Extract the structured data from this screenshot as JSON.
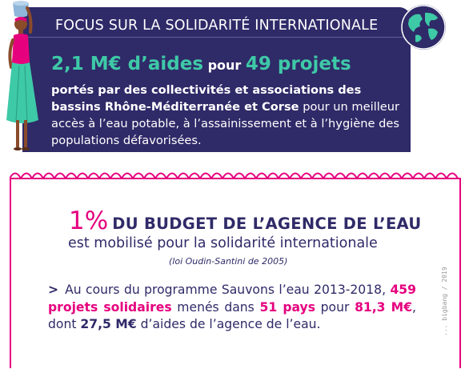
{
  "banner": {
    "title": "FOCUS SUR LA SOLIDARITÉ INTERNATIONALE",
    "amount": "2,1 M€ d’aides",
    "connector": "pour",
    "projects": "49 projets",
    "desc_bold": "portés par des collectivités et associations des bassins Rhône-Méditerranée et Corse",
    "desc_rest": " pour un meilleur accès à l’eau potable, à l’assainissement et à l’hygiène des populations défavorisées."
  },
  "box": {
    "percent": "1%",
    "headline": "DU BUDGET DE L’AGENCE DE L’EAU",
    "subtitle": "est mobilisé pour la solidarité internationale",
    "law": "(loi Oudin-Santini de 2005)",
    "bullet": ">",
    "p1": "Au cours du programme Sauvons l’eau 2013-2018,",
    "p2_hl": "459 projets solidaires",
    "p3": " menés dans ",
    "p4_hl": "51 pays",
    "p5": " pour ",
    "p6_hl": "81,3 M€",
    "p7": ", dont ",
    "p8_b": "27,5 M€",
    "p9": " d’aides de l’agence de l’eau."
  },
  "credit": "... bigbang / 2019",
  "colors": {
    "navy": "#2f2a68",
    "teal": "#3ec9a7",
    "magenta": "#e6007e"
  },
  "icons": {
    "globe": "globe-icon",
    "woman": "woman-carrying-water-illustration"
  }
}
